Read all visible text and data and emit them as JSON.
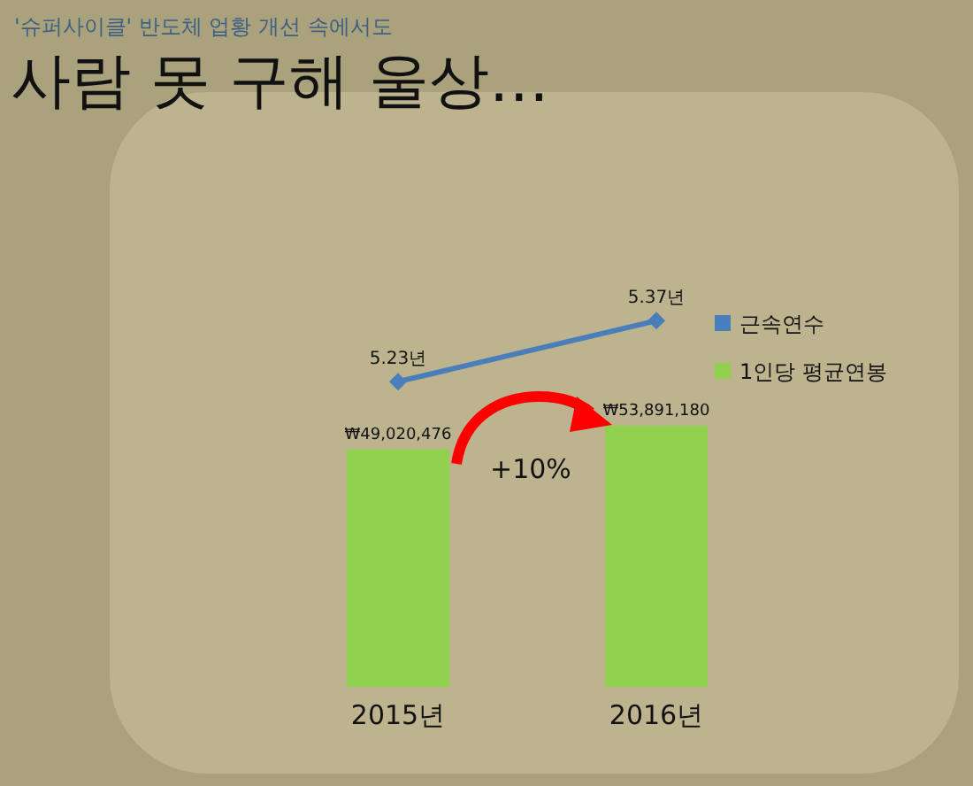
{
  "chart_data": [
    {
      "type": "line",
      "subtitle": "'슈퍼사이클' 반도체 업황 개선 속에서도",
      "title": "사람 못 구해 울상…",
      "categories": [
        null,
        null
      ],
      "series": [
        {
          "name": "근속연수",
          "color": "#4a7ebb",
          "marker": "diamond",
          "values": [
            5.23,
            5.37
          ],
          "value_labels": [
            "5.23년",
            "5.37년"
          ]
        }
      ],
      "tick_labels": false,
      "legend": "right"
    },
    {
      "type": "bar",
      "categories": [
        "2015년",
        "2016년"
      ],
      "series": [
        {
          "name": "1인당 평균연봉",
          "color": "#92d050",
          "values": [
            49020476,
            53891180
          ],
          "value_labels": [
            "₩49,020,476",
            "₩53,891,180"
          ]
        }
      ],
      "tick_labels": "x",
      "legend": "right",
      "annotations": [
        "+10%"
      ]
    }
  ]
}
